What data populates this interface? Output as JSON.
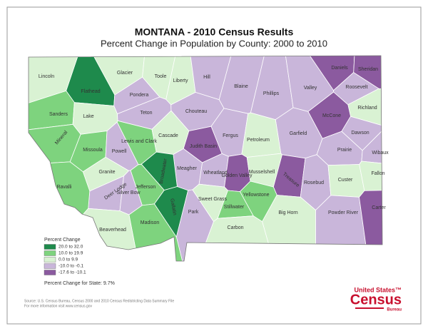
{
  "title": "MONTANA - 2010 Census Results",
  "subtitle": "Percent Change in Population by County:  2000 to 2010",
  "legend": {
    "title": "Percent Change",
    "entries": [
      {
        "label": "20.0 to 32.0",
        "color": "#1e8a4c"
      },
      {
        "label": "10.0 to 19.9",
        "color": "#7ed37e"
      },
      {
        "label": "0.0 to 9.9",
        "color": "#d9f2d3"
      },
      {
        "label": "-10.0 to -0.1",
        "color": "#c9b6da"
      },
      {
        "label": "-17.6 to -10.1",
        "color": "#8b5a9f"
      }
    ],
    "state_note": "Percent Change for State:  9.7%"
  },
  "counties": [
    {
      "name": "Lincoln",
      "color": "#d9f2d3"
    },
    {
      "name": "Glacier",
      "color": "#d9f2d3"
    },
    {
      "name": "Toole",
      "color": "#d9f2d3"
    },
    {
      "name": "Liberty",
      "color": "#d9f2d3"
    },
    {
      "name": "Hill",
      "color": "#c9b6da"
    },
    {
      "name": "Blaine",
      "color": "#c9b6da"
    },
    {
      "name": "Phillips",
      "color": "#c9b6da"
    },
    {
      "name": "Valley",
      "color": "#c9b6da"
    },
    {
      "name": "Daniels",
      "color": "#8b5a9f"
    },
    {
      "name": "Sheridan",
      "color": "#8b5a9f"
    },
    {
      "name": "Roosevelt",
      "color": "#c9b6da"
    },
    {
      "name": "Flathead",
      "color": "#1e8a4c"
    },
    {
      "name": "Pondera",
      "color": "#c9b6da"
    },
    {
      "name": "Sanders",
      "color": "#7ed37e"
    },
    {
      "name": "Lake",
      "color": "#d9f2d3"
    },
    {
      "name": "Teton",
      "color": "#c9b6da"
    },
    {
      "name": "Chouteau",
      "color": "#c9b6da"
    },
    {
      "name": "Richland",
      "color": "#d9f2d3"
    },
    {
      "name": "McCone",
      "color": "#8b5a9f"
    },
    {
      "name": "Mineral",
      "color": "#7ed37e"
    },
    {
      "name": "Lewis and Clark",
      "color": "#7ed37e"
    },
    {
      "name": "Cascade",
      "color": "#d9f2d3"
    },
    {
      "name": "Fergus",
      "color": "#c9b6da"
    },
    {
      "name": "Garfield",
      "color": "#c9b6da"
    },
    {
      "name": "Dawson",
      "color": "#c9b6da"
    },
    {
      "name": "Judith Basin",
      "color": "#8b5a9f"
    },
    {
      "name": "Petroleum",
      "color": "#d9f2d3"
    },
    {
      "name": "Missoula",
      "color": "#7ed37e"
    },
    {
      "name": "Powell",
      "color": "#c9b6da"
    },
    {
      "name": "Prairie",
      "color": "#c9b6da"
    },
    {
      "name": "Wibaux",
      "color": "#c9b6da"
    },
    {
      "name": "Meagher",
      "color": "#c9b6da"
    },
    {
      "name": "Granite",
      "color": "#d9f2d3"
    },
    {
      "name": "Wheatland",
      "color": "#c9b6da"
    },
    {
      "name": "Golden Valley",
      "color": "#8b5a9f"
    },
    {
      "name": "Musselshell",
      "color": "#d9f2d3"
    },
    {
      "name": "Broadwater",
      "color": "#1e8a4c"
    },
    {
      "name": "Jefferson",
      "color": "#7ed37e"
    },
    {
      "name": "Deer Lodge",
      "color": "#c9b6da"
    },
    {
      "name": "Ravalli",
      "color": "#7ed37e"
    },
    {
      "name": "Silver Bow",
      "color": "#c9b6da"
    },
    {
      "name": "Treasure",
      "color": "#8b5a9f"
    },
    {
      "name": "Rosebud",
      "color": "#c9b6da"
    },
    {
      "name": "Custer",
      "color": "#d9f2d3"
    },
    {
      "name": "Fallon",
      "color": "#d9f2d3"
    },
    {
      "name": "Sweet Grass",
      "color": "#d9f2d3"
    },
    {
      "name": "Yellowstone",
      "color": "#7ed37e"
    },
    {
      "name": "Gallatin",
      "color": "#1e8a4c"
    },
    {
      "name": "Park",
      "color": "#c9b6da"
    },
    {
      "name": "Stillwater",
      "color": "#7ed37e"
    },
    {
      "name": "Big Horn",
      "color": "#d9f2d3"
    },
    {
      "name": "Powder River",
      "color": "#c9b6da"
    },
    {
      "name": "Carter",
      "color": "#8b5a9f"
    },
    {
      "name": "Madison",
      "color": "#7ed37e"
    },
    {
      "name": "Beaverhead",
      "color": "#d9f2d3"
    },
    {
      "name": "Carbon",
      "color": "#d9f2d3"
    }
  ],
  "source": [
    "Source:  U.S. Census Bureau, Census 2000 and 2010 Census Redistricting Data Summary File",
    "For more information visit www.census.gov"
  ],
  "logo": {
    "line1": "United States™",
    "line2": "Census",
    "line3": "Bureau"
  }
}
